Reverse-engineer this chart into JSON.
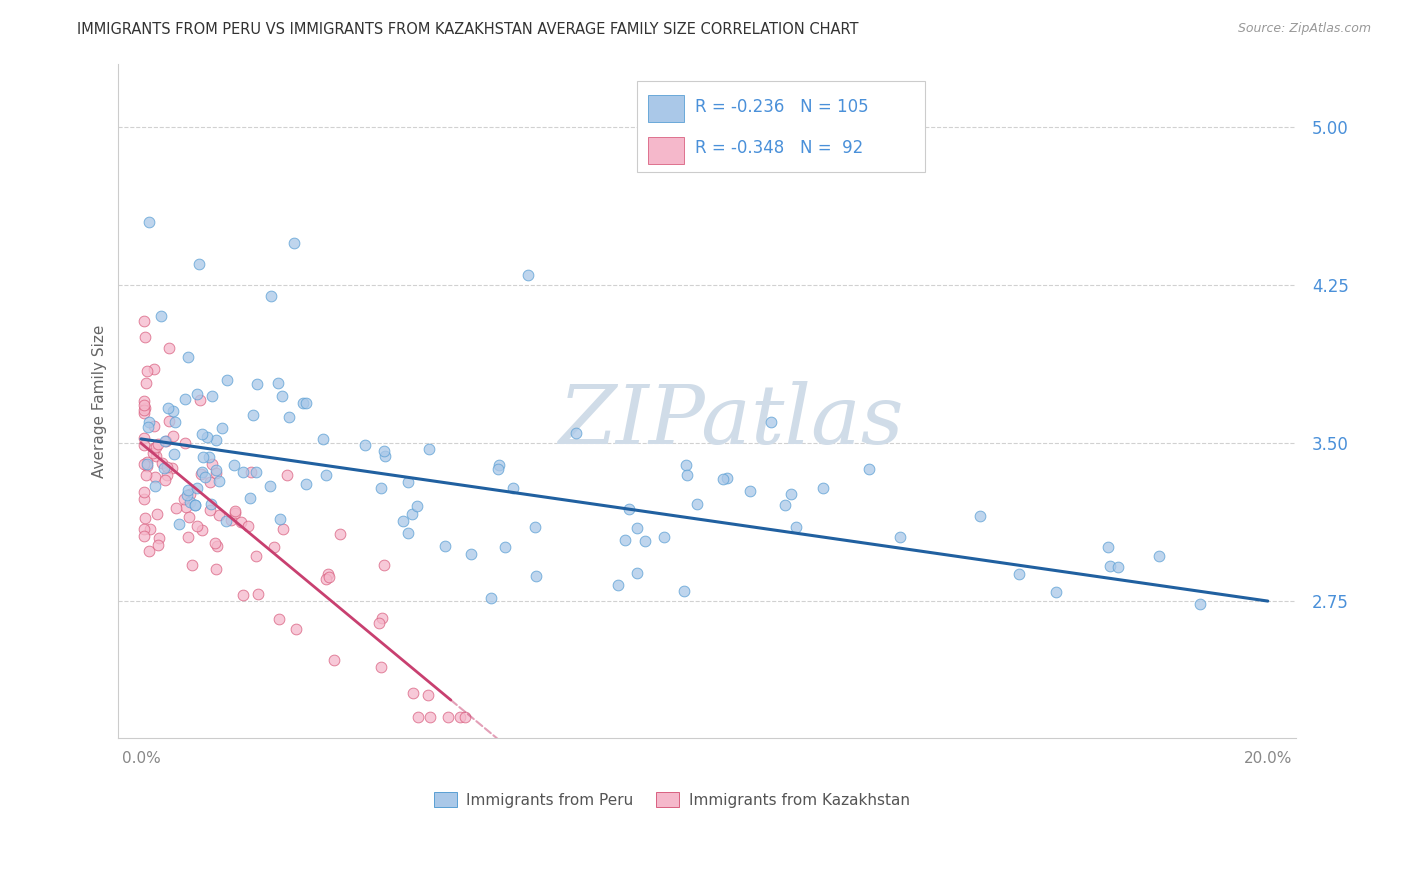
{
  "title": "IMMIGRANTS FROM PERU VS IMMIGRANTS FROM KAZAKHSTAN AVERAGE FAMILY SIZE CORRELATION CHART",
  "source": "Source: ZipAtlas.com",
  "ylabel": "Average Family Size",
  "yticks": [
    2.75,
    3.5,
    4.25,
    5.0
  ],
  "xlim": [
    0.0,
    0.205
  ],
  "ylim": [
    2.1,
    5.3
  ],
  "legend_labels": [
    "Immigrants from Peru",
    "Immigrants from Kazakhstan"
  ],
  "peru_R": "-0.236",
  "peru_N": "105",
  "kazakh_R": "-0.348",
  "kazakh_N": "92",
  "peru_color": "#aac8e8",
  "peru_edge_color": "#5a9fd4",
  "peru_line_color": "#2060a0",
  "kazakh_color": "#f5b8cb",
  "kazakh_edge_color": "#d96080",
  "kazakh_line_color": "#c84070",
  "background_color": "#ffffff",
  "grid_color": "#cccccc",
  "title_color": "#333333",
  "right_axis_color": "#4a90d9",
  "watermark_color": "#d0dce8",
  "watermark": "ZIPatlas"
}
